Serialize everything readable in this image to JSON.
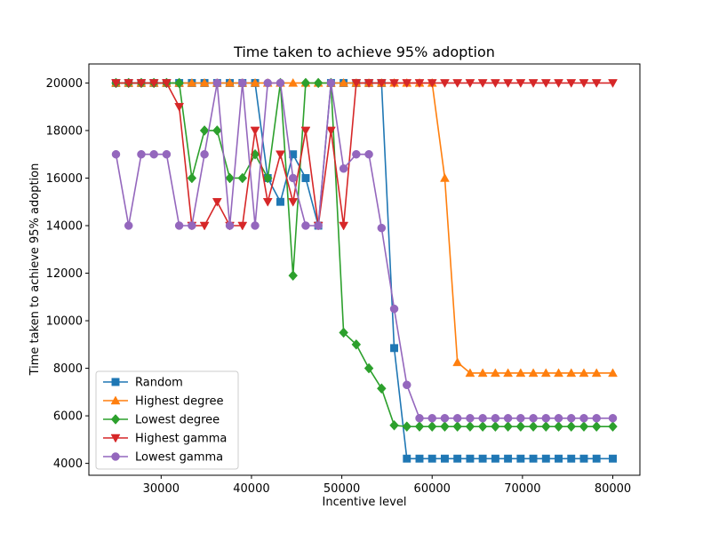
{
  "chart_data": {
    "type": "line",
    "title": "Time taken to achieve 95% adoption",
    "xlabel": "Incentive level",
    "ylabel": "Time taken to achieve 95% adoption",
    "xlim": [
      22000,
      83000
    ],
    "ylim": [
      3500,
      20800
    ],
    "xticks": [
      30000,
      40000,
      50000,
      60000,
      70000,
      80000
    ],
    "yticks": [
      4000,
      6000,
      8000,
      10000,
      12000,
      14000,
      16000,
      18000,
      20000
    ],
    "grid": false,
    "legend_position": "lower-left",
    "x": [
      25000,
      26400,
      27800,
      29200,
      30600,
      32000,
      33400,
      34800,
      36200,
      37600,
      39000,
      40400,
      41800,
      43200,
      44600,
      46000,
      47400,
      48800,
      50200,
      51600,
      53000,
      54400,
      55800,
      57200,
      58600,
      60000,
      61400,
      62800,
      64200,
      65600,
      67000,
      68400,
      69800,
      71200,
      72600,
      74000,
      75400,
      76800,
      78200,
      80000
    ],
    "series": [
      {
        "name": "Random",
        "color": "#1f77b4",
        "marker": "square",
        "values": [
          20000,
          20000,
          20000,
          20000,
          20000,
          20000,
          20000,
          20000,
          20000,
          20000,
          20000,
          20000,
          16000,
          15000,
          17000,
          16000,
          14000,
          20000,
          20000,
          20000,
          20000,
          20000,
          8850,
          4200,
          4200,
          4200,
          4200,
          4200,
          4200,
          4200,
          4200,
          4200,
          4200,
          4200,
          4200,
          4200,
          4200,
          4200,
          4200,
          4200
        ]
      },
      {
        "name": "Highest degree",
        "color": "#ff7f0e",
        "marker": "triangle-up",
        "values": [
          20000,
          20000,
          20000,
          20000,
          20000,
          20000,
          20000,
          20000,
          20000,
          20000,
          20000,
          20000,
          20000,
          20000,
          20000,
          20000,
          20000,
          20000,
          20000,
          20000,
          20000,
          20000,
          20000,
          20000,
          20000,
          20000,
          16000,
          8250,
          7800,
          7800,
          7800,
          7800,
          7800,
          7800,
          7800,
          7800,
          7800,
          7800,
          7800,
          7800
        ]
      },
      {
        "name": "Lowest degree",
        "color": "#2ca02c",
        "marker": "diamond",
        "values": [
          20000,
          20000,
          20000,
          20000,
          20000,
          20000,
          16000,
          18000,
          18000,
          16000,
          16000,
          17000,
          16000,
          20000,
          11900,
          20000,
          20000,
          20000,
          9500,
          9000,
          8000,
          7150,
          5600,
          5550,
          5550,
          5550,
          5550,
          5550,
          5550,
          5550,
          5550,
          5550,
          5550,
          5550,
          5550,
          5550,
          5550,
          5550,
          5550,
          5550
        ]
      },
      {
        "name": "Highest gamma",
        "color": "#d62728",
        "marker": "triangle-down",
        "values": [
          20000,
          20000,
          20000,
          20000,
          20000,
          19000,
          14000,
          14000,
          15000,
          14000,
          14000,
          18000,
          15000,
          17000,
          15000,
          18000,
          14000,
          18000,
          14000,
          20000,
          20000,
          20000,
          20000,
          20000,
          20000,
          20000,
          20000,
          20000,
          20000,
          20000,
          20000,
          20000,
          20000,
          20000,
          20000,
          20000,
          20000,
          20000,
          20000,
          20000
        ]
      },
      {
        "name": "Lowest gamma",
        "color": "#9467bd",
        "marker": "circle",
        "values": [
          17000,
          14000,
          17000,
          17000,
          17000,
          14000,
          14000,
          17000,
          20000,
          14000,
          20000,
          14000,
          20000,
          20000,
          16000,
          14000,
          14000,
          20000,
          16400,
          17000,
          17000,
          13900,
          10500,
          7300,
          5900,
          5900,
          5900,
          5900,
          5900,
          5900,
          5900,
          5900,
          5900,
          5900,
          5900,
          5900,
          5900,
          5900,
          5900,
          5900
        ]
      }
    ]
  }
}
